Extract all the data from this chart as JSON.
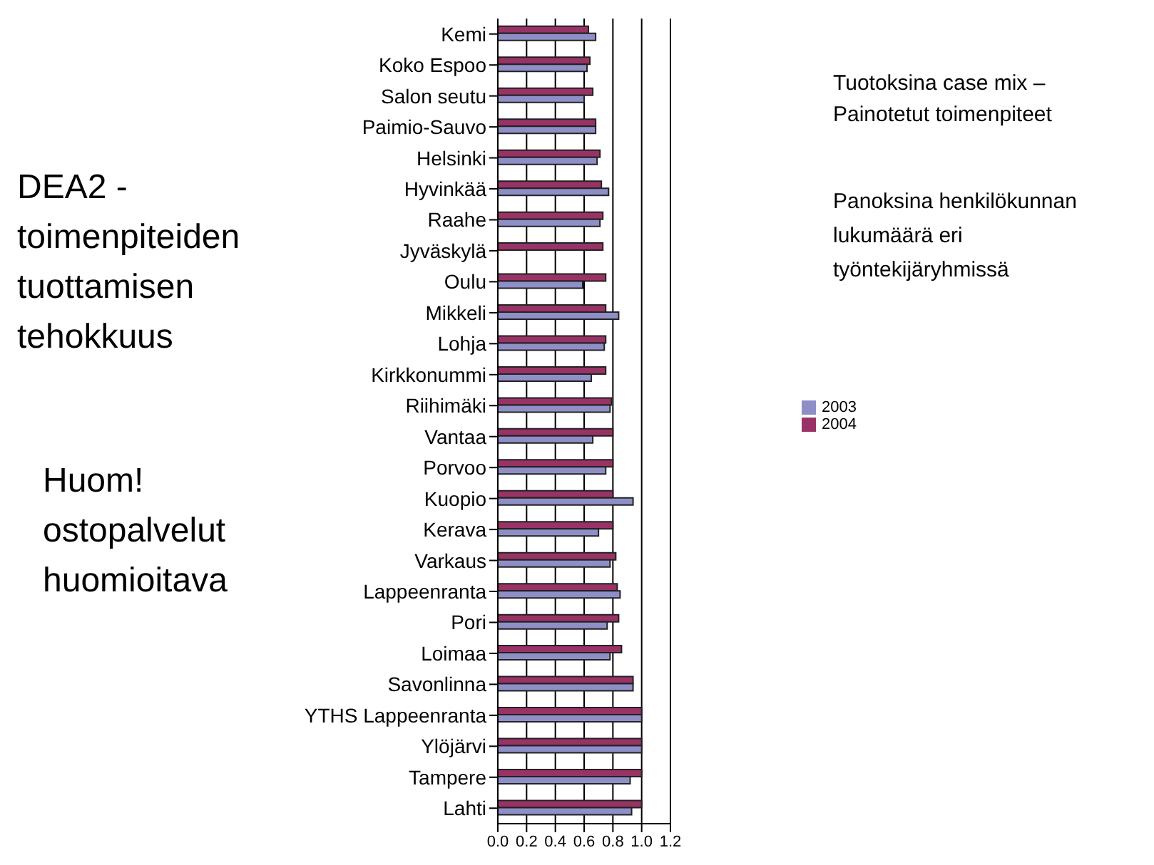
{
  "chart_data": {
    "type": "bar",
    "orientation": "horizontal",
    "categories": [
      "Kemi",
      "Koko Espoo",
      "Salon seutu",
      "Paimio-Sauvo",
      "Helsinki",
      "Hyvinkää",
      "Raahe",
      "Jyväskylä",
      "Oulu",
      "Mikkeli",
      "Lohja",
      "Kirkkonummi",
      "Riihimäki",
      "Vantaa",
      "Porvoo",
      "Kuopio",
      "Kerava",
      "Varkaus",
      "Lappeenranta",
      "Pori",
      "Loimaa",
      "Savonlinna",
      "YTHS Lappeenranta",
      "Ylöjärvi",
      "Tampere",
      "Lahti"
    ],
    "series": [
      {
        "name": "2004",
        "color": "#993366",
        "values": [
          0.63,
          0.64,
          0.66,
          0.68,
          0.71,
          0.72,
          0.73,
          0.73,
          0.75,
          0.75,
          0.75,
          0.75,
          0.79,
          0.8,
          0.8,
          0.8,
          0.8,
          0.82,
          0.83,
          0.84,
          0.86,
          0.94,
          1.0,
          1.0,
          1.0,
          1.0
        ]
      },
      {
        "name": "2003",
        "color": "#8f8fc8",
        "values": [
          0.68,
          0.62,
          0.6,
          0.68,
          0.69,
          0.77,
          0.71,
          null,
          0.59,
          0.84,
          0.74,
          0.65,
          0.78,
          0.66,
          0.75,
          0.94,
          0.7,
          0.78,
          0.85,
          0.76,
          0.78,
          0.94,
          1.0,
          1.0,
          0.92,
          0.93
        ]
      }
    ],
    "xlim": [
      0,
      1.2
    ],
    "xticks": [
      {
        "value": 0,
        "label": "0.0"
      },
      {
        "value": 0.2,
        "label": "0.2"
      },
      {
        "value": 0.4,
        "label": "0.4"
      },
      {
        "value": 0.6,
        "label": "0.6"
      },
      {
        "value": 0.8,
        "label": "0.8"
      },
      {
        "value": 1.0,
        "label": "1.0"
      },
      {
        "value": 1.2,
        "label": "1.2"
      }
    ],
    "grid": "x",
    "legend": "right",
    "annotations": [
      "DEA2 -\ntoimenpiteiden\ntuottamisen\ntehokkuus",
      "Huom!\nostopalvelut\nhuomioitava",
      "Tuotoksina case mix –\nPainotetut toimenpiteet",
      "Panoksina henkilökunnan\nlukumäärä eri\ntyöntekijäryhmissä"
    ]
  }
}
